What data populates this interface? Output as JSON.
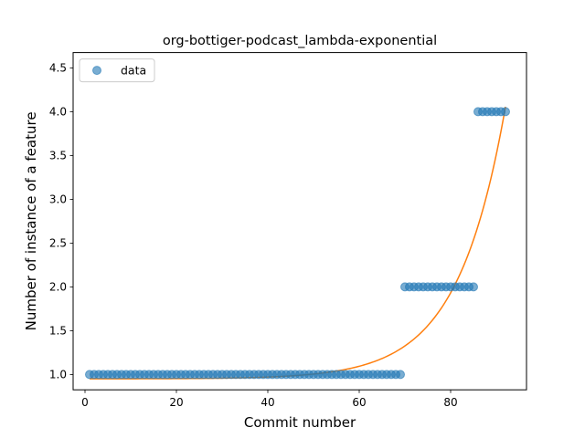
{
  "chart_data": {
    "type": "scatter",
    "title": "org-bottiger-podcast_lambda-exponential",
    "xlabel": "Commit number",
    "ylabel": "Number of instance of a feature",
    "xlim": [
      -2.6,
      96.6
    ],
    "ylim": [
      0.825,
      4.675
    ],
    "xticks": [
      0,
      20,
      40,
      60,
      80
    ],
    "yticks": [
      1.0,
      1.5,
      2.0,
      2.5,
      3.0,
      3.5,
      4.0,
      4.5
    ],
    "xtick_labels": [
      "0",
      "20",
      "40",
      "60",
      "80"
    ],
    "ytick_labels": [
      "1.0",
      "1.5",
      "2.0",
      "2.5",
      "3.0",
      "3.5",
      "4.0",
      "4.5"
    ],
    "legend": {
      "position": "upper left",
      "entries": [
        "data"
      ]
    },
    "grid": false,
    "colors": {
      "data": "#1f77b4",
      "fit": "#ff7f0e"
    },
    "series": [
      {
        "name": "data",
        "kind": "scatter",
        "segments": [
          {
            "x_from": 1,
            "x_to": 69,
            "y": 1.0
          },
          {
            "x_from": 70,
            "x_to": 85,
            "y": 2.0
          },
          {
            "x_from": 86,
            "x_to": 92,
            "y": 4.0
          }
        ]
      },
      {
        "kind": "line",
        "model": "exponential",
        "x_range": [
          1,
          92
        ],
        "params": {
          "a": 0.0004548,
          "b": 0.09597,
          "c": 0.95
        }
      }
    ]
  }
}
